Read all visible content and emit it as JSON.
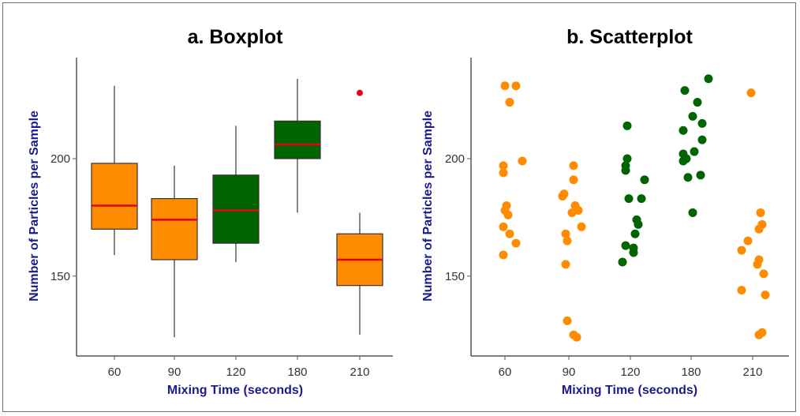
{
  "colors": {
    "orange": "#FF8C00",
    "green": "#006400",
    "median": "#E6001A",
    "outlier": "#E6001A",
    "axis_label": "#1A1A8C"
  },
  "chart_data": [
    {
      "type": "boxplot",
      "title": "a. Boxplot",
      "xlabel": "Mixing Time (seconds)",
      "ylabel": "Number of Particles per Sample",
      "categories": [
        "60",
        "90",
        "120",
        "180",
        "210"
      ],
      "yticks": [
        150,
        200
      ],
      "ylim": [
        116,
        243
      ],
      "boxes": [
        {
          "category": "60",
          "whisker_low": 159,
          "q1": 170,
          "median": 180,
          "q3": 198,
          "whisker_high": 231,
          "color": "orange",
          "outliers": []
        },
        {
          "category": "90",
          "whisker_low": 124,
          "q1": 157,
          "median": 174,
          "q3": 183,
          "whisker_high": 197,
          "color": "orange",
          "outliers": []
        },
        {
          "category": "120",
          "whisker_low": 156,
          "q1": 164,
          "median": 178,
          "q3": 193,
          "whisker_high": 214,
          "color": "green",
          "outliers": []
        },
        {
          "category": "180",
          "whisker_low": 177,
          "q1": 200,
          "median": 206,
          "q3": 216,
          "whisker_high": 234,
          "color": "green",
          "outliers": []
        },
        {
          "category": "210",
          "whisker_low": 125,
          "q1": 146,
          "median": 157,
          "q3": 168,
          "whisker_high": 177,
          "color": "orange",
          "outliers": [
            228
          ]
        }
      ]
    },
    {
      "type": "scatter",
      "title": "b. Scatterplot",
      "xlabel": "Mixing Time (seconds)",
      "ylabel": "Number of Particles per Sample",
      "categories": [
        "60",
        "90",
        "120",
        "180",
        "210"
      ],
      "yticks": [
        150,
        200
      ],
      "ylim": [
        116,
        243
      ],
      "series": [
        {
          "category": "60",
          "color": "orange",
          "points": [
            {
              "offset": 0.0,
              "y": 231
            },
            {
              "offset": 0.35,
              "y": 231
            },
            {
              "offset": 0.15,
              "y": 224
            },
            {
              "offset": 0.55,
              "y": 199
            },
            {
              "offset": -0.05,
              "y": 197
            },
            {
              "offset": -0.05,
              "y": 194
            },
            {
              "offset": 0.05,
              "y": 180
            },
            {
              "offset": 0.0,
              "y": 178
            },
            {
              "offset": 0.1,
              "y": 176
            },
            {
              "offset": -0.05,
              "y": 171
            },
            {
              "offset": 0.15,
              "y": 168
            },
            {
              "offset": 0.35,
              "y": 164
            },
            {
              "offset": -0.05,
              "y": 159
            }
          ]
        },
        {
          "category": "90",
          "color": "orange",
          "points": [
            {
              "offset": 0.15,
              "y": 197
            },
            {
              "offset": 0.15,
              "y": 191
            },
            {
              "offset": -0.15,
              "y": 185
            },
            {
              "offset": -0.2,
              "y": 184
            },
            {
              "offset": 0.2,
              "y": 180
            },
            {
              "offset": 0.3,
              "y": 178
            },
            {
              "offset": 0.1,
              "y": 177
            },
            {
              "offset": 0.4,
              "y": 171
            },
            {
              "offset": -0.1,
              "y": 168
            },
            {
              "offset": -0.05,
              "y": 165
            },
            {
              "offset": -0.1,
              "y": 155
            },
            {
              "offset": -0.05,
              "y": 131
            },
            {
              "offset": 0.15,
              "y": 125
            },
            {
              "offset": 0.25,
              "y": 124
            }
          ]
        },
        {
          "category": "120",
          "color": "green",
          "points": [
            {
              "offset": -0.1,
              "y": 214
            },
            {
              "offset": -0.1,
              "y": 200
            },
            {
              "offset": -0.15,
              "y": 197
            },
            {
              "offset": -0.15,
              "y": 195
            },
            {
              "offset": 0.45,
              "y": 191
            },
            {
              "offset": -0.05,
              "y": 183
            },
            {
              "offset": 0.35,
              "y": 183
            },
            {
              "offset": 0.2,
              "y": 174
            },
            {
              "offset": 0.25,
              "y": 172
            },
            {
              "offset": 0.15,
              "y": 168
            },
            {
              "offset": -0.15,
              "y": 163
            },
            {
              "offset": 0.1,
              "y": 162
            },
            {
              "offset": 0.1,
              "y": 160
            },
            {
              "offset": -0.25,
              "y": 156
            }
          ]
        },
        {
          "category": "180",
          "color": "green",
          "points": [
            {
              "offset": 0.55,
              "y": 234
            },
            {
              "offset": -0.2,
              "y": 229
            },
            {
              "offset": 0.2,
              "y": 224
            },
            {
              "offset": 0.05,
              "y": 218
            },
            {
              "offset": 0.35,
              "y": 215
            },
            {
              "offset": -0.25,
              "y": 212
            },
            {
              "offset": 0.35,
              "y": 208
            },
            {
              "offset": 0.1,
              "y": 203
            },
            {
              "offset": -0.25,
              "y": 202
            },
            {
              "offset": -0.15,
              "y": 200
            },
            {
              "offset": -0.25,
              "y": 199
            },
            {
              "offset": 0.3,
              "y": 193
            },
            {
              "offset": -0.1,
              "y": 192
            },
            {
              "offset": 0.05,
              "y": 177
            }
          ]
        },
        {
          "category": "210",
          "color": "orange",
          "points": [
            {
              "offset": -0.05,
              "y": 228
            },
            {
              "offset": 0.25,
              "y": 177
            },
            {
              "offset": 0.3,
              "y": 172
            },
            {
              "offset": 0.2,
              "y": 170
            },
            {
              "offset": -0.15,
              "y": 165
            },
            {
              "offset": -0.35,
              "y": 161
            },
            {
              "offset": 0.2,
              "y": 157
            },
            {
              "offset": 0.15,
              "y": 155
            },
            {
              "offset": 0.35,
              "y": 151
            },
            {
              "offset": -0.35,
              "y": 144
            },
            {
              "offset": 0.4,
              "y": 142
            },
            {
              "offset": 0.3,
              "y": 126
            },
            {
              "offset": 0.2,
              "y": 125
            }
          ]
        }
      ]
    }
  ]
}
